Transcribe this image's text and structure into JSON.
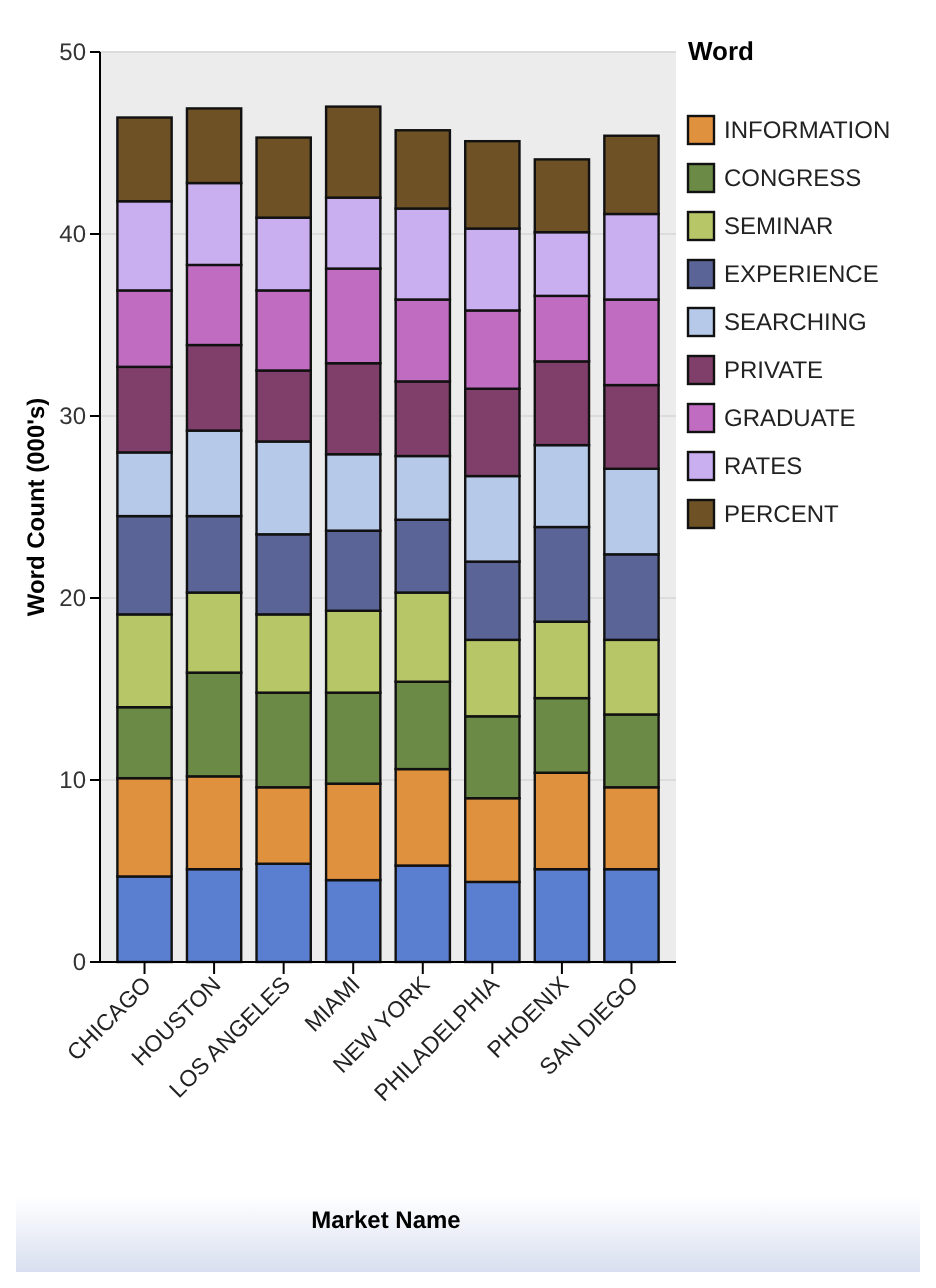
{
  "chart_data": {
    "type": "bar",
    "stacked": true,
    "xlabel": "Market Name",
    "ylabel": "Word Count (000's)",
    "legend_title": "Word",
    "legend": "right",
    "grid": "y",
    "categories": [
      "CHICAGO",
      "HOUSTON",
      "LOS ANGELES",
      "MIAMI",
      "NEW YORK",
      "PHILADELPHIA",
      "PHOENIX",
      "SAN DIEGO"
    ],
    "ylim": [
      0,
      50
    ],
    "yticks": [
      0,
      10,
      20,
      30,
      40,
      50
    ],
    "series": [
      {
        "color": "#5b7fd0",
        "values": [
          4.7,
          5.1,
          5.4,
          4.5,
          5.3,
          4.4,
          5.1,
          5.1
        ]
      },
      {
        "name": "INFORMATION",
        "color": "#e0913e",
        "values": [
          5.4,
          5.1,
          4.2,
          5.3,
          5.3,
          4.6,
          5.3,
          4.5
        ]
      },
      {
        "name": "CONGRESS",
        "color": "#6b8a45",
        "values": [
          3.9,
          5.7,
          5.2,
          5.0,
          4.8,
          4.5,
          4.1,
          4.0
        ]
      },
      {
        "name": "SEMINAR",
        "color": "#b7c767",
        "values": [
          5.1,
          4.4,
          4.3,
          4.5,
          4.9,
          4.2,
          4.2,
          4.1
        ]
      },
      {
        "name": "EXPERIENCE",
        "color": "#5a6496",
        "values": [
          5.4,
          4.2,
          4.4,
          4.4,
          4.0,
          4.3,
          5.2,
          4.7
        ]
      },
      {
        "name": "SEARCHING",
        "color": "#b7c9e8",
        "values": [
          3.5,
          4.7,
          5.1,
          4.2,
          3.5,
          4.7,
          4.5,
          4.7
        ]
      },
      {
        "name": "PRIVATE",
        "color": "#7f3f6a",
        "values": [
          4.7,
          4.7,
          3.9,
          5.0,
          4.1,
          4.8,
          4.6,
          4.6
        ]
      },
      {
        "name": "GRADUATE",
        "color": "#c06cc0",
        "values": [
          4.2,
          4.4,
          4.4,
          5.2,
          4.5,
          4.3,
          3.6,
          4.7
        ]
      },
      {
        "name": "RATES",
        "color": "#c9aef0",
        "values": [
          4.9,
          4.5,
          4.0,
          3.9,
          5.0,
          4.5,
          3.5,
          4.7
        ]
      },
      {
        "name": "PERCENT",
        "color": "#6e5226",
        "values": [
          4.6,
          4.1,
          4.4,
          5.0,
          4.3,
          4.8,
          4.0,
          4.3
        ]
      }
    ]
  }
}
